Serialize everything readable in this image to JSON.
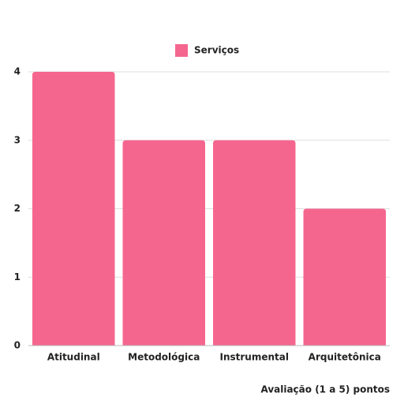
{
  "chart_data": {
    "type": "bar",
    "categories": [
      "Atitudinal",
      "Metodológica",
      "Instrumental",
      "Arquitetônica"
    ],
    "series": [
      {
        "name": "Serviços",
        "color": "#f5668f",
        "values": [
          4,
          3,
          3,
          2
        ]
      }
    ],
    "x_label": "Avaliação (1 a 5) pontos",
    "ylim": [
      0,
      4
    ],
    "yticks": [
      0,
      1,
      2,
      3,
      4
    ],
    "grid": true,
    "legend": "top"
  }
}
